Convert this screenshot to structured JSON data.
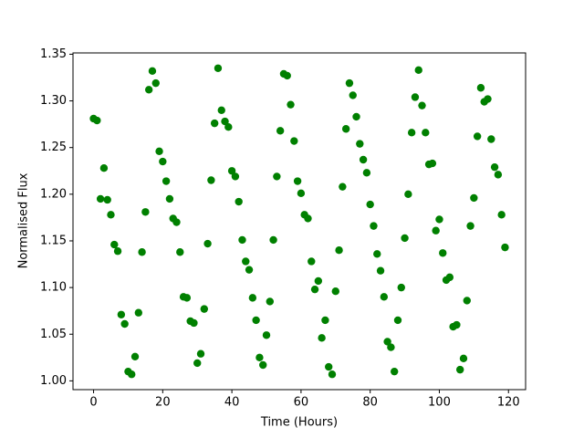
{
  "chart_data": {
    "type": "scatter",
    "xlabel": "Time (Hours)",
    "ylabel": "Normalised Flux",
    "x": [
      0,
      1,
      2,
      3,
      4,
      5,
      6,
      7,
      8,
      9,
      10,
      11,
      12,
      13,
      14,
      15,
      16,
      17,
      18,
      19,
      20,
      21,
      22,
      23,
      24,
      25,
      26,
      27,
      28,
      29,
      30,
      31,
      32,
      33,
      34,
      35,
      36,
      37,
      38,
      39,
      40,
      41,
      42,
      43,
      44,
      45,
      46,
      47,
      48,
      49,
      50,
      51,
      52,
      53,
      54,
      55,
      56,
      57,
      58,
      59,
      60,
      61,
      62,
      63,
      64,
      65,
      66,
      67,
      68,
      69,
      70,
      71,
      72,
      73,
      74,
      75,
      76,
      77,
      78,
      79,
      80,
      81,
      82,
      83,
      84,
      85,
      86,
      87,
      88,
      89,
      90,
      91,
      92,
      93,
      94,
      95,
      96,
      97,
      98,
      99,
      100,
      101,
      102,
      103,
      104,
      105,
      106,
      107,
      108,
      109,
      110,
      111,
      112,
      113,
      114,
      115,
      116,
      117,
      118,
      119
    ],
    "values": [
      1.281,
      1.279,
      1.195,
      1.228,
      1.194,
      1.178,
      1.146,
      1.139,
      1.071,
      1.061,
      1.01,
      1.007,
      1.026,
      1.073,
      1.138,
      1.181,
      1.312,
      1.332,
      1.319,
      1.246,
      1.235,
      1.214,
      1.195,
      1.174,
      1.17,
      1.138,
      1.09,
      1.089,
      1.064,
      1.062,
      1.019,
      1.029,
      1.077,
      1.147,
      1.215,
      1.276,
      1.335,
      1.29,
      1.278,
      1.272,
      1.225,
      1.219,
      1.192,
      1.151,
      1.128,
      1.119,
      1.089,
      1.065,
      1.025,
      1.017,
      1.049,
      1.085,
      1.151,
      1.219,
      1.268,
      1.329,
      1.327,
      1.296,
      1.257,
      1.214,
      1.201,
      1.178,
      1.174,
      1.128,
      1.098,
      1.107,
      1.046,
      1.065,
      1.015,
      1.007,
      1.096,
      1.14,
      1.208,
      1.27,
      1.319,
      1.306,
      1.283,
      1.254,
      1.237,
      1.223,
      1.189,
      1.166,
      1.136,
      1.118,
      1.09,
      1.042,
      1.036,
      1.01,
      1.065,
      1.1,
      1.153,
      1.2,
      1.266,
      1.304,
      1.333,
      1.295,
      1.266,
      1.232,
      1.233,
      1.161,
      1.173,
      1.137,
      1.108,
      1.111,
      1.058,
      1.06,
      1.012,
      1.024,
      1.086,
      1.166,
      1.196,
      1.262,
      1.314,
      1.299,
      1.302,
      1.259,
      1.229,
      1.221,
      1.178,
      1.143
    ],
    "color": "#008000",
    "xlim": [
      -5.95,
      124.95
    ],
    "xticks": [
      0,
      20,
      40,
      60,
      80,
      100,
      120
    ],
    "ylim": [
      0.9906,
      1.3514
    ],
    "yticks": [
      {
        "value": 1,
        "label": "1.00"
      },
      1.05,
      {
        "value": 1.1,
        "label": "1.10"
      },
      1.15,
      {
        "value": 1.2,
        "label": "1.20"
      },
      1.25,
      {
        "value": 1.3,
        "label": "1.30"
      },
      1.35
    ]
  }
}
